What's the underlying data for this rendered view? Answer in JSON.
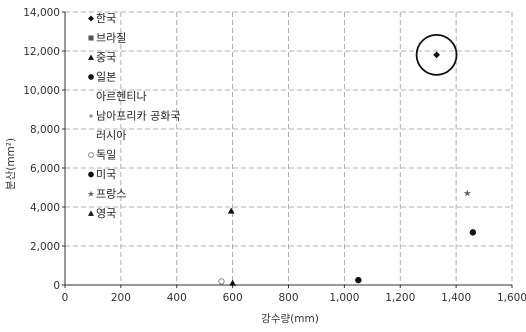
{
  "chart_data": {
    "type": "scatter",
    "xlabel": "강수량(mm)",
    "ylabel": "분산(mm²)",
    "xlim": [
      0,
      1600
    ],
    "ylim": [
      0,
      14000
    ],
    "x_ticks": [
      "0",
      "200",
      "400",
      "600",
      "800",
      "1,000",
      "1,200",
      "1,400",
      "1,600"
    ],
    "y_ticks": [
      "0",
      "2,000",
      "4,000",
      "6,000",
      "8,000",
      "10,000",
      "12,000",
      "14,000"
    ],
    "grid": true,
    "legend_position": "top-left",
    "series": [
      {
        "name": "한국",
        "marker": "diamond",
        "color": "#111111",
        "points": [
          [
            1330,
            11800
          ]
        ]
      },
      {
        "name": "브라질",
        "marker": "square",
        "color": "#555555",
        "points": []
      },
      {
        "name": "중국",
        "marker": "triangle",
        "color": "#111111",
        "points": [
          [
            595,
            3800
          ]
        ]
      },
      {
        "name": "일본",
        "marker": "circle",
        "color": "#111111",
        "points": [
          [
            1460,
            2700
          ]
        ]
      },
      {
        "name": "아르헨티나",
        "marker": "none",
        "color": "#777777",
        "points": []
      },
      {
        "name": "남아프리카 공화국",
        "marker": "small-circle",
        "color": "#999999",
        "points": []
      },
      {
        "name": "러시아",
        "marker": "none",
        "color": "#777777",
        "points": []
      },
      {
        "name": "독일",
        "marker": "open-circle",
        "color": "#888888",
        "points": [
          [
            560,
            180
          ]
        ]
      },
      {
        "name": "미국",
        "marker": "circle",
        "color": "#111111",
        "points": [
          [
            1050,
            250
          ]
        ]
      },
      {
        "name": "프랑스",
        "marker": "star",
        "color": "#666666",
        "points": [
          [
            1440,
            4700
          ]
        ]
      },
      {
        "name": "영국",
        "marker": "triangle",
        "color": "#111111",
        "points": [
          [
            600,
            100
          ]
        ]
      }
    ],
    "highlight": {
      "series": "한국",
      "point": [
        1330,
        11800
      ],
      "shape": "circle"
    }
  },
  "styles": {
    "axis_color": "#333333",
    "grid_color": "#9a9a9a"
  }
}
